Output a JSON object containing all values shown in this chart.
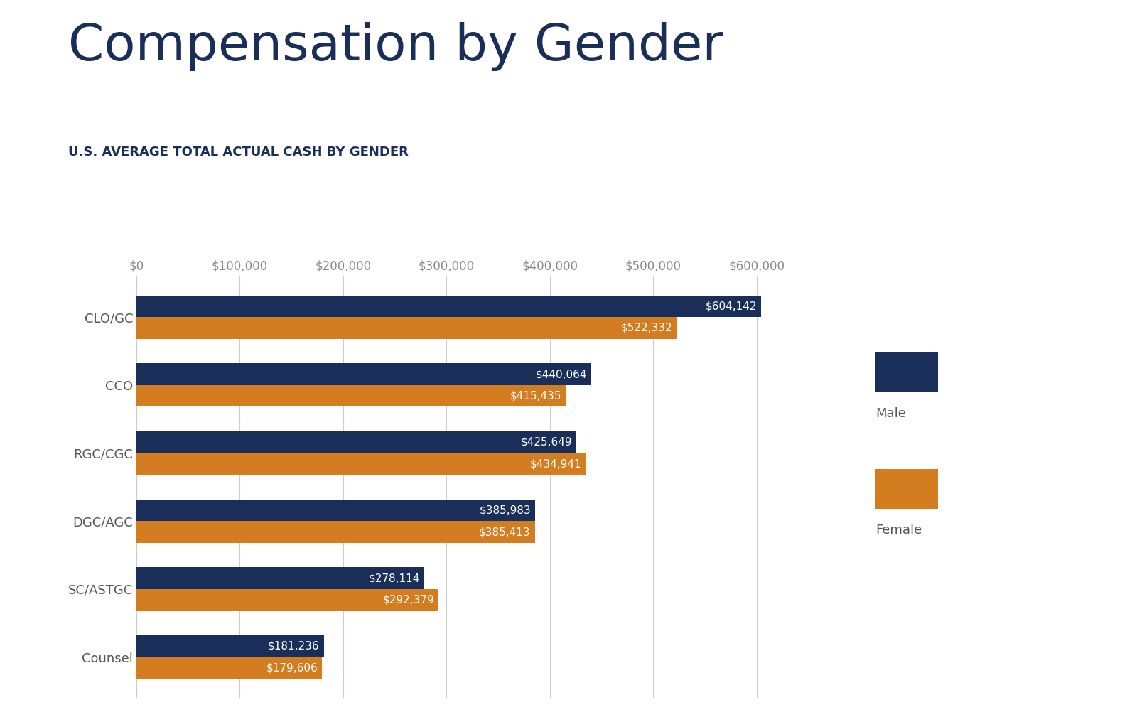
{
  "title": "Compensation by Gender",
  "subtitle": "U.S. AVERAGE TOTAL ACTUAL CASH BY GENDER",
  "categories": [
    "Counsel",
    "SC/ASTGC",
    "DGC/AGC",
    "RGC/CGC",
    "CCO",
    "CLO/GC"
  ],
  "male_values": [
    181236,
    278114,
    385983,
    425649,
    440064,
    604142
  ],
  "female_values": [
    179606,
    292379,
    385413,
    434941,
    415435,
    522332
  ],
  "male_color": "#1a2e5a",
  "female_color": "#d47c20",
  "bar_labels_male": [
    "$181,236",
    "$278,114",
    "$385,983",
    "$425,649",
    "$440,064",
    "$604,142"
  ],
  "bar_labels_female": [
    "$179,606",
    "$292,379",
    "$385,413",
    "$434,941",
    "$415,435",
    "$522,332"
  ],
  "xlim": [
    0,
    660000
  ],
  "xticks": [
    0,
    100000,
    200000,
    300000,
    400000,
    500000,
    600000
  ],
  "xtick_labels": [
    "$0",
    "$100,000",
    "$200,000",
    "$300,000",
    "$400,000",
    "$500,000",
    "$600,000"
  ],
  "background_color": "#ffffff",
  "title_fontsize": 52,
  "subtitle_fontsize": 13,
  "tick_label_fontsize": 12,
  "bar_label_fontsize": 11,
  "category_label_fontsize": 13,
  "legend_fontsize": 13,
  "grid_color": "#cccccc",
  "text_color": "#1a2e5a"
}
